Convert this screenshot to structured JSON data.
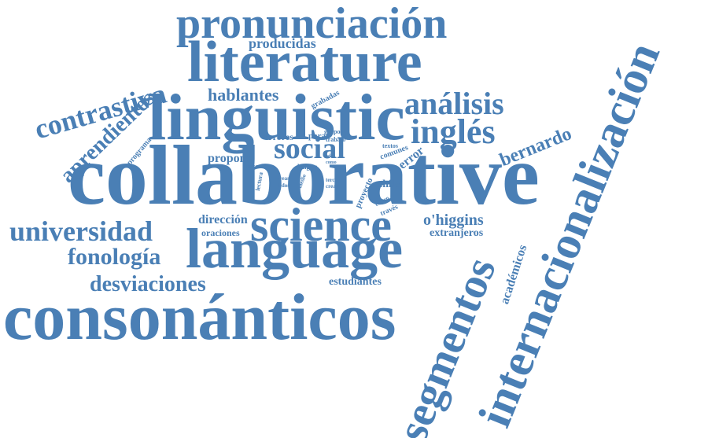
{
  "color": "#4a7fb5",
  "words": [
    "pronunciación",
    "literature",
    "linguistic",
    "collaborative",
    "language",
    "consonánticos",
    "internacionalización",
    "segmentos",
    "science",
    "universidad",
    "fonología",
    "desviaciones",
    "contrastiva",
    "aprendientes",
    "análisis",
    "inglés",
    "social",
    "bernardo",
    "hablantes",
    "producidas",
    "o'higgins",
    "extranjeros",
    "académicos",
    "dirección",
    "oraciones",
    "estudiantes",
    "propone",
    "errores",
    "para",
    "error",
    "chile",
    "proyecto",
    "grabadas",
    "trabajo",
    "grupos",
    "textos",
    "comunes",
    "programa",
    "cursos",
    "lectura",
    "lengua",
    "áreas",
    "todos",
    "medio",
    "todo",
    "como",
    "tercer",
    "crear",
    "centro",
    "través"
  ]
}
